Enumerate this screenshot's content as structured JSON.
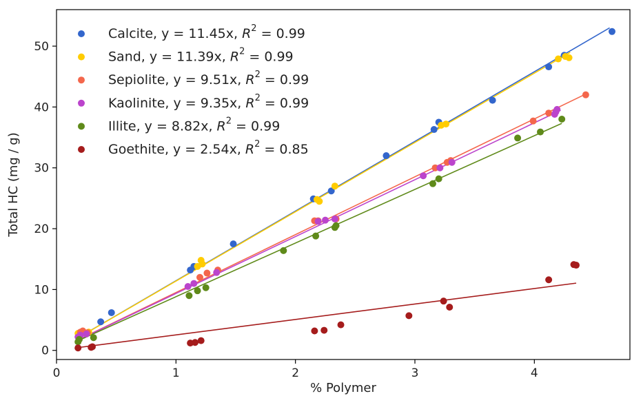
{
  "chart_data": {
    "type": "scatter",
    "xlabel": "% Polymer",
    "ylabel": "Total HC (mg / g)",
    "xlim": [
      0,
      4.8
    ],
    "ylim": [
      -1.5,
      56
    ],
    "xticks": [
      0,
      1,
      2,
      3,
      4
    ],
    "yticks": [
      0,
      10,
      20,
      30,
      40,
      50
    ],
    "grid": false,
    "legend_position": "top-left",
    "series": [
      {
        "name": "Calcite",
        "legend": {
          "prefix": "Calcite, y = 11.45x, ",
          "r2": " = 0.99"
        },
        "color": "#3366cc",
        "slope": 11.45,
        "fit_x": [
          0.2,
          4.63
        ],
        "points": [
          [
            0.2,
            2.8
          ],
          [
            0.37,
            4.7
          ],
          [
            0.46,
            6.2
          ],
          [
            1.12,
            13.2
          ],
          [
            1.15,
            13.8
          ],
          [
            1.48,
            17.5
          ],
          [
            2.15,
            24.9
          ],
          [
            2.3,
            26.2
          ],
          [
            2.76,
            32.0
          ],
          [
            3.16,
            36.3
          ],
          [
            3.2,
            37.5
          ],
          [
            3.65,
            41.1
          ],
          [
            4.12,
            46.6
          ],
          [
            4.25,
            48.5
          ],
          [
            4.65,
            52.4
          ]
        ]
      },
      {
        "name": "Sand",
        "legend": {
          "prefix": "Sand, y = 11.39x, ",
          "r2": " = 0.99"
        },
        "color": "#ffcc00",
        "slope": 11.39,
        "fit_x": [
          0.18,
          4.3
        ],
        "points": [
          [
            0.18,
            2.8
          ],
          [
            0.22,
            3.1
          ],
          [
            0.27,
            3.0
          ],
          [
            1.18,
            13.8
          ],
          [
            1.21,
            14.8
          ],
          [
            1.22,
            14.2
          ],
          [
            2.18,
            24.8
          ],
          [
            2.2,
            24.5
          ],
          [
            2.33,
            27.0
          ],
          [
            3.22,
            37.0
          ],
          [
            3.26,
            37.2
          ],
          [
            4.2,
            47.9
          ],
          [
            4.26,
            48.3
          ],
          [
            4.29,
            48.1
          ]
        ]
      },
      {
        "name": "Sepiolite",
        "legend": {
          "prefix": "Sepiolite, y = 9.51x, ",
          "r2": " = 0.99"
        },
        "color": "#f4674c",
        "slope": 9.51,
        "fit_x": [
          0.2,
          4.43
        ],
        "points": [
          [
            0.2,
            3.0
          ],
          [
            0.22,
            3.2
          ],
          [
            0.26,
            2.9
          ],
          [
            1.2,
            12.0
          ],
          [
            1.26,
            12.7
          ],
          [
            1.35,
            13.2
          ],
          [
            2.16,
            21.3
          ],
          [
            2.19,
            21.3
          ],
          [
            2.34,
            21.6
          ],
          [
            3.17,
            30.0
          ],
          [
            3.27,
            30.9
          ],
          [
            3.3,
            31.2
          ],
          [
            3.99,
            37.7
          ],
          [
            4.12,
            39.0
          ],
          [
            4.43,
            42.0
          ]
        ]
      },
      {
        "name": "Kaolinite",
        "legend": {
          "prefix": "Kaolinite, y = 9.35x, ",
          "r2": " = 0.99"
        },
        "color": "#bb44cc",
        "slope": 9.35,
        "fit_x": [
          0.18,
          4.22
        ],
        "points": [
          [
            0.18,
            2.2
          ],
          [
            0.2,
            2.5
          ],
          [
            0.25,
            2.7
          ],
          [
            1.1,
            10.5
          ],
          [
            1.15,
            11.0
          ],
          [
            1.34,
            12.8
          ],
          [
            2.19,
            21.2
          ],
          [
            2.25,
            21.4
          ],
          [
            2.33,
            21.6
          ],
          [
            3.07,
            28.7
          ],
          [
            3.21,
            30.0
          ],
          [
            3.31,
            30.9
          ],
          [
            4.17,
            38.8
          ],
          [
            4.18,
            39.2
          ],
          [
            4.19,
            39.6
          ]
        ]
      },
      {
        "name": "Illite",
        "legend": {
          "prefix": "Illite, y = 8.82x, ",
          "r2": " = 0.99"
        },
        "color": "#5f8a1a",
        "slope": 8.82,
        "fit_x": [
          0.18,
          4.23
        ],
        "points": [
          [
            0.18,
            1.4
          ],
          [
            0.19,
            1.8
          ],
          [
            0.31,
            2.1
          ],
          [
            1.11,
            9.0
          ],
          [
            1.18,
            9.8
          ],
          [
            1.25,
            10.3
          ],
          [
            1.9,
            16.4
          ],
          [
            2.17,
            18.8
          ],
          [
            2.33,
            20.2
          ],
          [
            2.34,
            20.5
          ],
          [
            3.15,
            27.4
          ],
          [
            3.2,
            28.2
          ],
          [
            3.86,
            34.9
          ],
          [
            4.05,
            35.9
          ],
          [
            4.23,
            38.0
          ]
        ]
      },
      {
        "name": "Goethite",
        "legend": {
          "prefix": "Goethite, y = 2.54x, ",
          "r2": " = 0.85"
        },
        "color": "#a51c1c",
        "slope": 2.54,
        "fit_x": [
          0.2,
          4.35
        ],
        "points": [
          [
            0.18,
            0.4
          ],
          [
            0.29,
            0.5
          ],
          [
            0.3,
            0.6
          ],
          [
            1.12,
            1.2
          ],
          [
            1.16,
            1.3
          ],
          [
            1.21,
            1.6
          ],
          [
            2.16,
            3.2
          ],
          [
            2.24,
            3.3
          ],
          [
            2.38,
            4.2
          ],
          [
            2.95,
            5.7
          ],
          [
            3.24,
            8.1
          ],
          [
            3.29,
            7.1
          ],
          [
            4.12,
            11.6
          ],
          [
            4.33,
            14.1
          ],
          [
            4.35,
            14.0
          ]
        ]
      }
    ]
  }
}
